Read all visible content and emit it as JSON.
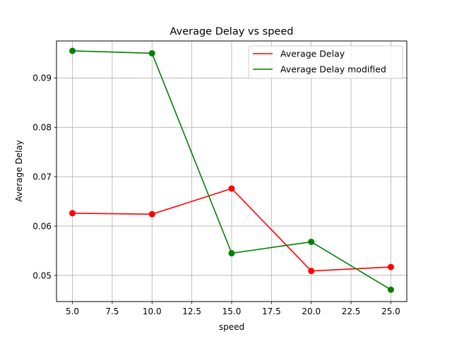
{
  "chart_data": {
    "type": "line",
    "title": "Average Delay vs speed",
    "xlabel": "speed",
    "ylabel": "Average Delay",
    "x": [
      5,
      10,
      15,
      20,
      25
    ],
    "xlim": [
      4,
      26
    ],
    "ylim": [
      0.0447,
      0.0975
    ],
    "xticks": [
      5.0,
      7.5,
      10.0,
      12.5,
      15.0,
      17.5,
      20.0,
      22.5,
      25.0
    ],
    "xtick_labels": [
      "5.0",
      "7.5",
      "10.0",
      "12.5",
      "15.0",
      "17.5",
      "20.0",
      "22.5",
      "25.0"
    ],
    "yticks": [
      0.05,
      0.06,
      0.07,
      0.08,
      0.09
    ],
    "ytick_labels": [
      "0.05",
      "0.06",
      "0.07",
      "0.08",
      "0.09"
    ],
    "grid": true,
    "legend_position": "upper right",
    "series": [
      {
        "name": "Average Delay",
        "color": "#ff0000",
        "values": [
          0.0626,
          0.0624,
          0.0676,
          0.0509,
          0.0517
        ]
      },
      {
        "name": "Average Delay modified",
        "color": "#008000",
        "values": [
          0.0955,
          0.095,
          0.0545,
          0.0568,
          0.0471
        ]
      }
    ]
  }
}
